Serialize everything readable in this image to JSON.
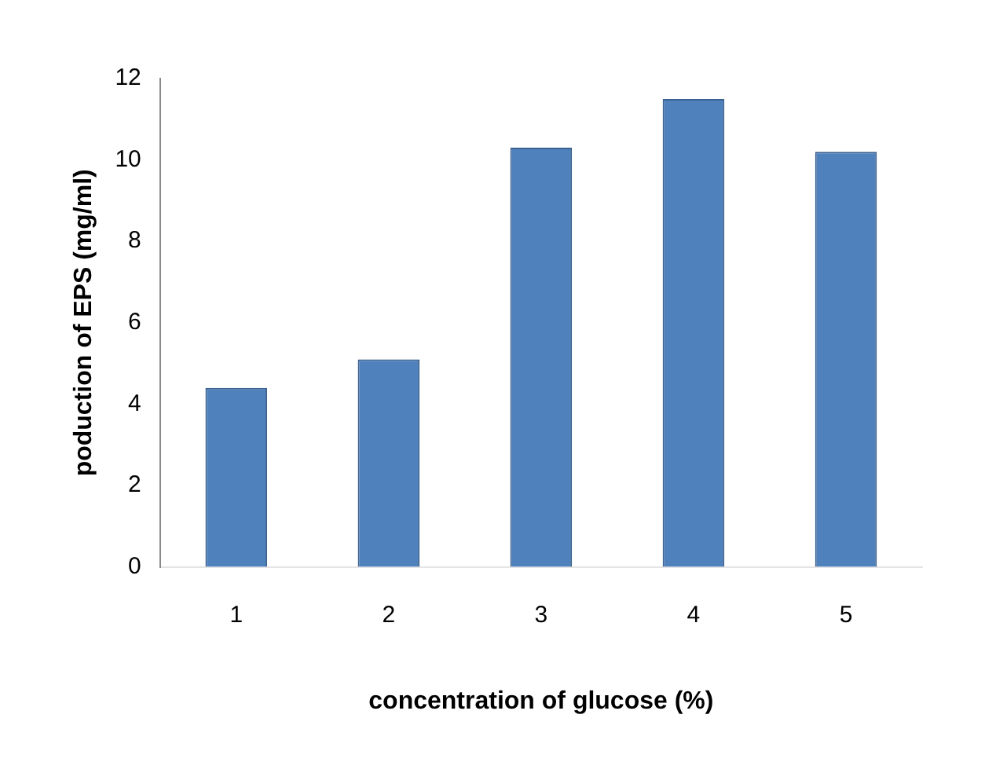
{
  "chart_data": {
    "type": "bar",
    "xlabel": "concentration of glucose (%)",
    "ylabel": "poduction of EPS (mg/ml)",
    "categories": [
      "1",
      "2",
      "3",
      "4",
      "5"
    ],
    "values": [
      4.4,
      5.1,
      10.3,
      11.5,
      10.2
    ],
    "color": "#4f81bd",
    "ylim": [
      0,
      12
    ],
    "yticks": [
      0,
      2,
      4,
      6,
      8,
      10,
      12
    ],
    "grid": false,
    "legend": false
  }
}
